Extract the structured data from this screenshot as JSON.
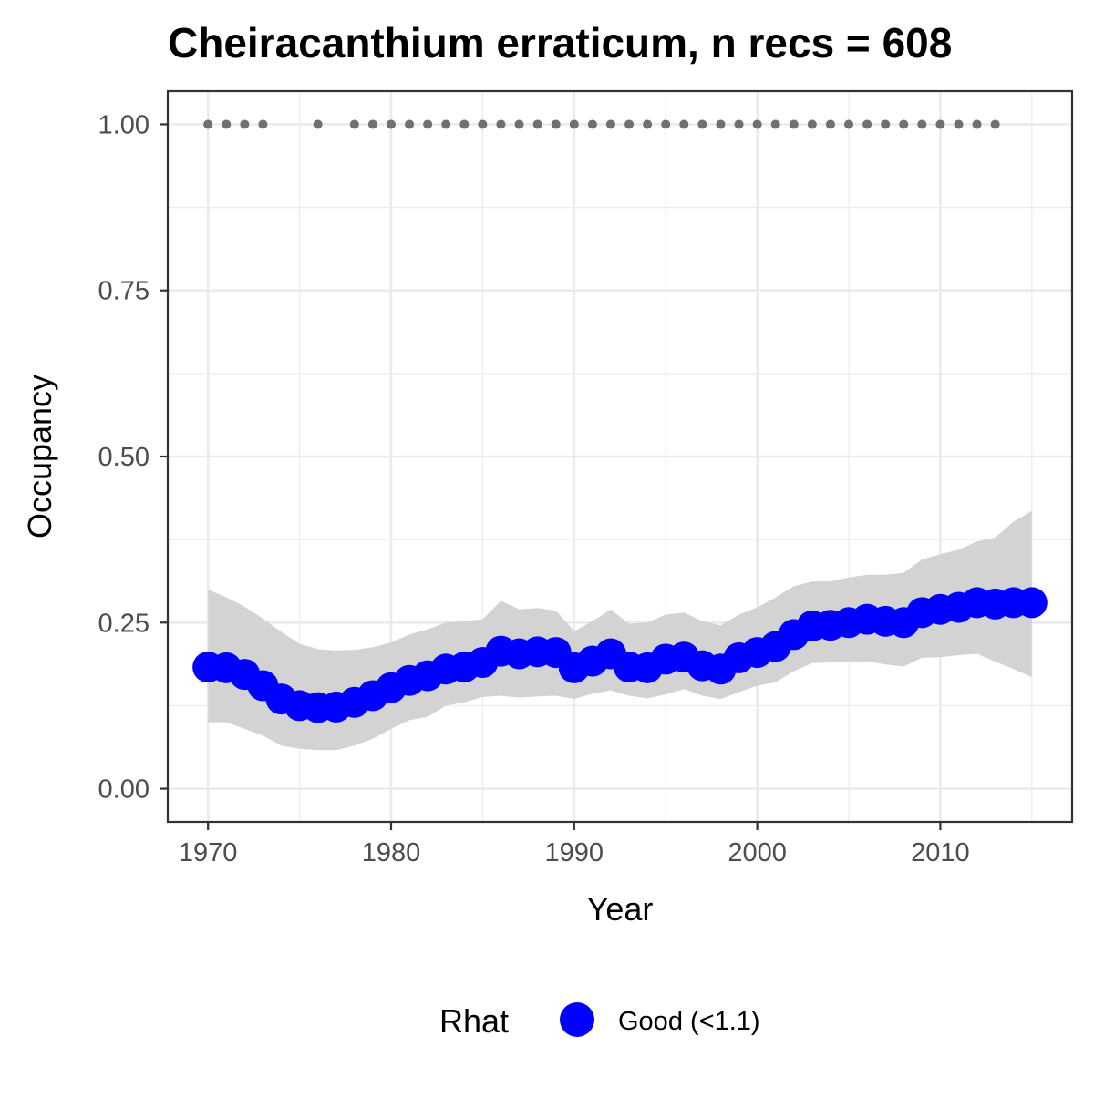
{
  "chart_data": {
    "type": "line",
    "title": "Cheiracanthium erraticum, n recs = 608",
    "xlabel": "Year",
    "ylabel": "Occupancy",
    "xlim": [
      1967.8,
      2017.2
    ],
    "ylim": [
      -0.05,
      1.05
    ],
    "x_ticks": [
      1970,
      1980,
      1990,
      2000,
      2010
    ],
    "x_tick_labels": [
      "1970",
      "1980",
      "1990",
      "2000",
      "2010"
    ],
    "y_ticks": [
      0,
      0.25,
      0.5,
      0.75,
      1.0
    ],
    "y_tick_labels": [
      "0.00",
      "0.25",
      "0.50",
      "0.75",
      "1.00"
    ],
    "grid": true,
    "legend_position": "bottom",
    "series": [
      {
        "name": "Good (<1.1)",
        "color": "#0000ff",
        "x": [
          1970,
          1971,
          1972,
          1973,
          1974,
          1975,
          1976,
          1977,
          1978,
          1979,
          1980,
          1981,
          1982,
          1983,
          1984,
          1985,
          1986,
          1987,
          1988,
          1989,
          1990,
          1991,
          1992,
          1993,
          1994,
          1995,
          1996,
          1997,
          1998,
          1999,
          2000,
          2001,
          2002,
          2003,
          2004,
          2005,
          2006,
          2007,
          2008,
          2009,
          2010,
          2011,
          2012,
          2013,
          2014,
          2015
        ],
        "y": [
          0.183,
          0.182,
          0.172,
          0.155,
          0.135,
          0.125,
          0.122,
          0.123,
          0.13,
          0.14,
          0.152,
          0.163,
          0.17,
          0.18,
          0.183,
          0.19,
          0.207,
          0.203,
          0.206,
          0.205,
          0.182,
          0.192,
          0.203,
          0.183,
          0.182,
          0.195,
          0.198,
          0.185,
          0.18,
          0.197,
          0.205,
          0.214,
          0.232,
          0.245,
          0.246,
          0.25,
          0.255,
          0.252,
          0.25,
          0.265,
          0.27,
          0.273,
          0.28,
          0.278,
          0.28,
          0.28
        ],
        "lower": [
          0.1,
          0.1,
          0.09,
          0.08,
          0.065,
          0.06,
          0.058,
          0.058,
          0.065,
          0.075,
          0.09,
          0.103,
          0.108,
          0.125,
          0.13,
          0.138,
          0.14,
          0.137,
          0.139,
          0.14,
          0.135,
          0.143,
          0.148,
          0.14,
          0.136,
          0.142,
          0.15,
          0.14,
          0.135,
          0.145,
          0.155,
          0.16,
          0.177,
          0.189,
          0.19,
          0.19,
          0.192,
          0.187,
          0.184,
          0.197,
          0.198,
          0.201,
          0.203,
          0.191,
          0.18,
          0.168
        ],
        "upper": [
          0.3,
          0.288,
          0.274,
          0.256,
          0.236,
          0.218,
          0.21,
          0.208,
          0.209,
          0.213,
          0.22,
          0.232,
          0.24,
          0.25,
          0.252,
          0.255,
          0.283,
          0.27,
          0.272,
          0.268,
          0.237,
          0.252,
          0.27,
          0.248,
          0.25,
          0.262,
          0.265,
          0.252,
          0.246,
          0.262,
          0.273,
          0.288,
          0.305,
          0.312,
          0.312,
          0.318,
          0.322,
          0.322,
          0.325,
          0.345,
          0.353,
          0.36,
          0.372,
          0.378,
          0.402,
          0.418
        ]
      }
    ],
    "record_years": [
      1970,
      1971,
      1972,
      1973,
      1976,
      1978,
      1979,
      1980,
      1981,
      1982,
      1983,
      1984,
      1985,
      1986,
      1987,
      1988,
      1989,
      1990,
      1991,
      1992,
      1993,
      1994,
      1995,
      1996,
      1997,
      1998,
      1999,
      2000,
      2001,
      2002,
      2003,
      2004,
      2005,
      2006,
      2007,
      2008,
      2009,
      2010,
      2011,
      2012,
      2013
    ],
    "record_marker_value": 1.0,
    "record_marker_color": "#707070",
    "band_color": "#d3d3d3"
  },
  "legend": {
    "title": "Rhat",
    "items": [
      {
        "label": "Good (<1.1)",
        "color": "#0000ff"
      }
    ]
  }
}
